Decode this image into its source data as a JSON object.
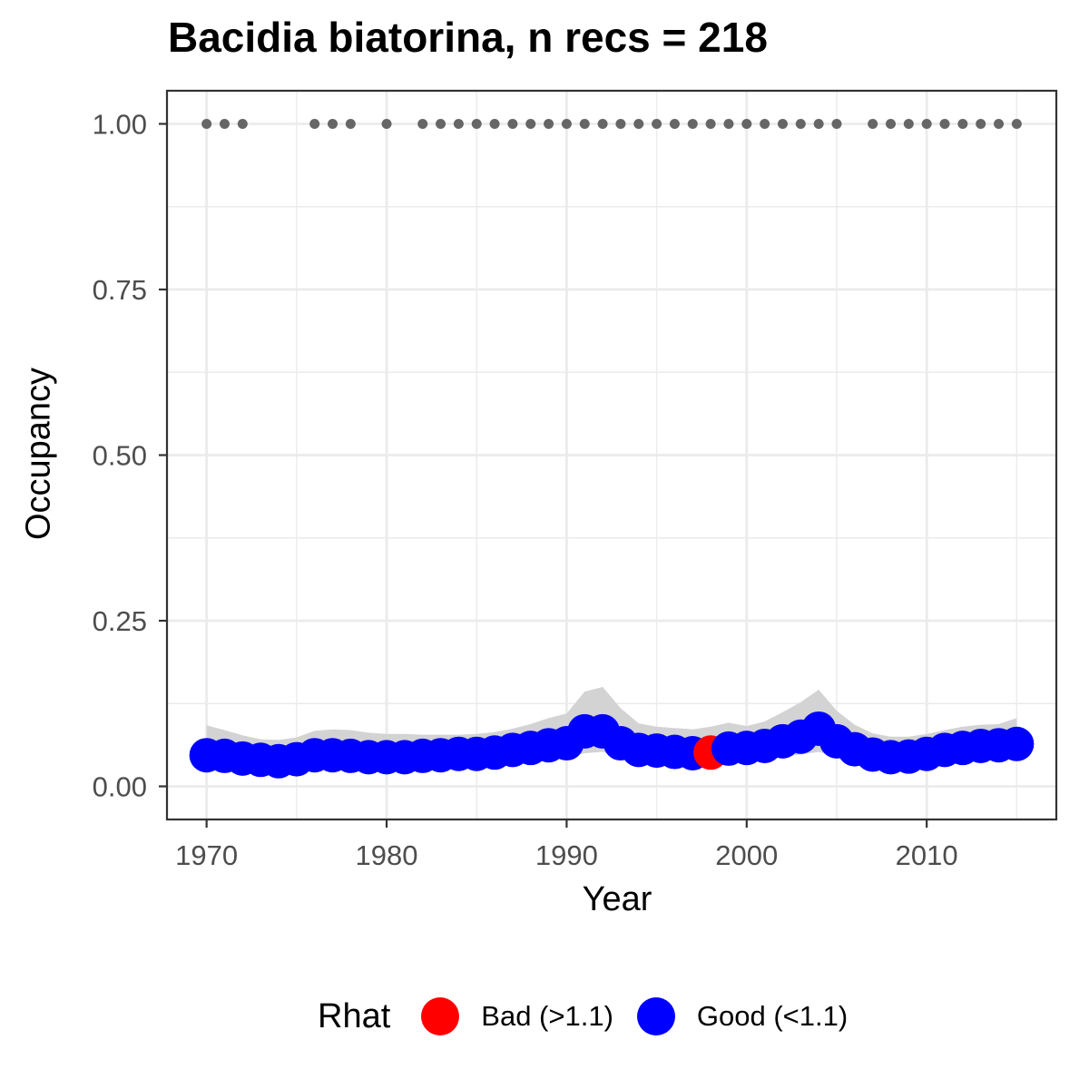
{
  "chart_data": {
    "type": "line",
    "title": "Bacidia biatorina, n recs = 218",
    "xlabel": "Year",
    "ylabel": "Occupancy",
    "xlim": [
      1967.8,
      2017.2
    ],
    "ylim": [
      -0.05,
      1.05
    ],
    "xticks": [
      1970,
      1980,
      1990,
      2000,
      2010
    ],
    "yticks": [
      0.0,
      0.25,
      0.5,
      0.75,
      1.0
    ],
    "ytick_labels": [
      "0.00",
      "0.25",
      "0.50",
      "0.75",
      "1.00"
    ],
    "grid": true,
    "colors": {
      "bad": "#ff0000",
      "good": "#0000ff",
      "ribbon": "#d3d3d3",
      "records": "#666666",
      "grid": "#ebebeb",
      "panel_border": "#333333"
    },
    "series": [
      {
        "name": "Occupancy (mean)",
        "x": [
          1970,
          1971,
          1972,
          1973,
          1974,
          1975,
          1976,
          1977,
          1978,
          1979,
          1980,
          1981,
          1982,
          1983,
          1984,
          1985,
          1986,
          1987,
          1988,
          1989,
          1990,
          1991,
          1992,
          1993,
          1994,
          1995,
          1996,
          1997,
          1998,
          1999,
          2000,
          2001,
          2002,
          2003,
          2004,
          2005,
          2006,
          2007,
          2008,
          2009,
          2010,
          2011,
          2012,
          2013,
          2014,
          2015
        ],
        "y": [
          0.047,
          0.046,
          0.042,
          0.04,
          0.038,
          0.041,
          0.047,
          0.047,
          0.046,
          0.044,
          0.044,
          0.044,
          0.046,
          0.047,
          0.049,
          0.049,
          0.051,
          0.055,
          0.058,
          0.062,
          0.065,
          0.083,
          0.083,
          0.065,
          0.055,
          0.054,
          0.052,
          0.05,
          0.051,
          0.057,
          0.058,
          0.061,
          0.068,
          0.075,
          0.087,
          0.068,
          0.056,
          0.048,
          0.044,
          0.045,
          0.049,
          0.055,
          0.058,
          0.061,
          0.062,
          0.064
        ],
        "rhat": [
          "Good",
          "Good",
          "Good",
          "Good",
          "Good",
          "Good",
          "Good",
          "Good",
          "Good",
          "Good",
          "Good",
          "Good",
          "Good",
          "Good",
          "Good",
          "Good",
          "Good",
          "Good",
          "Good",
          "Good",
          "Good",
          "Good",
          "Good",
          "Good",
          "Good",
          "Good",
          "Good",
          "Good",
          "Bad",
          "Good",
          "Good",
          "Good",
          "Good",
          "Good",
          "Good",
          "Good",
          "Good",
          "Good",
          "Good",
          "Good",
          "Good",
          "Good",
          "Good",
          "Good",
          "Good",
          "Good"
        ],
        "lower": [
          0.03,
          0.03,
          0.028,
          0.026,
          0.024,
          0.027,
          0.031,
          0.032,
          0.031,
          0.03,
          0.03,
          0.03,
          0.031,
          0.032,
          0.033,
          0.034,
          0.035,
          0.037,
          0.039,
          0.041,
          0.043,
          0.05,
          0.052,
          0.044,
          0.038,
          0.037,
          0.036,
          0.035,
          0.035,
          0.038,
          0.04,
          0.042,
          0.045,
          0.048,
          0.052,
          0.045,
          0.038,
          0.032,
          0.03,
          0.03,
          0.033,
          0.037,
          0.039,
          0.041,
          0.042,
          0.043
        ],
        "upper": [
          0.092,
          0.085,
          0.077,
          0.071,
          0.07,
          0.074,
          0.084,
          0.086,
          0.085,
          0.081,
          0.079,
          0.079,
          0.078,
          0.078,
          0.078,
          0.079,
          0.082,
          0.087,
          0.094,
          0.103,
          0.11,
          0.143,
          0.15,
          0.118,
          0.095,
          0.09,
          0.088,
          0.086,
          0.09,
          0.096,
          0.091,
          0.098,
          0.112,
          0.127,
          0.146,
          0.114,
          0.093,
          0.08,
          0.075,
          0.075,
          0.079,
          0.085,
          0.09,
          0.093,
          0.094,
          0.103
        ]
      },
      {
        "name": "Records",
        "x": [
          1970,
          1971,
          1972,
          1976,
          1977,
          1978,
          1980,
          1982,
          1983,
          1984,
          1985,
          1986,
          1987,
          1988,
          1989,
          1990,
          1991,
          1992,
          1993,
          1994,
          1995,
          1996,
          1997,
          1998,
          1999,
          2000,
          2001,
          2002,
          2003,
          2004,
          2005,
          2007,
          2008,
          2009,
          2010,
          2011,
          2012,
          2013,
          2014,
          2015
        ],
        "y": 1.0
      }
    ],
    "legend": {
      "title": "Rhat",
      "position": "bottom",
      "items": [
        {
          "label": "Bad (>1.1)",
          "color": "#ff0000"
        },
        {
          "label": "Good (<1.1)",
          "color": "#0000ff"
        }
      ]
    }
  }
}
